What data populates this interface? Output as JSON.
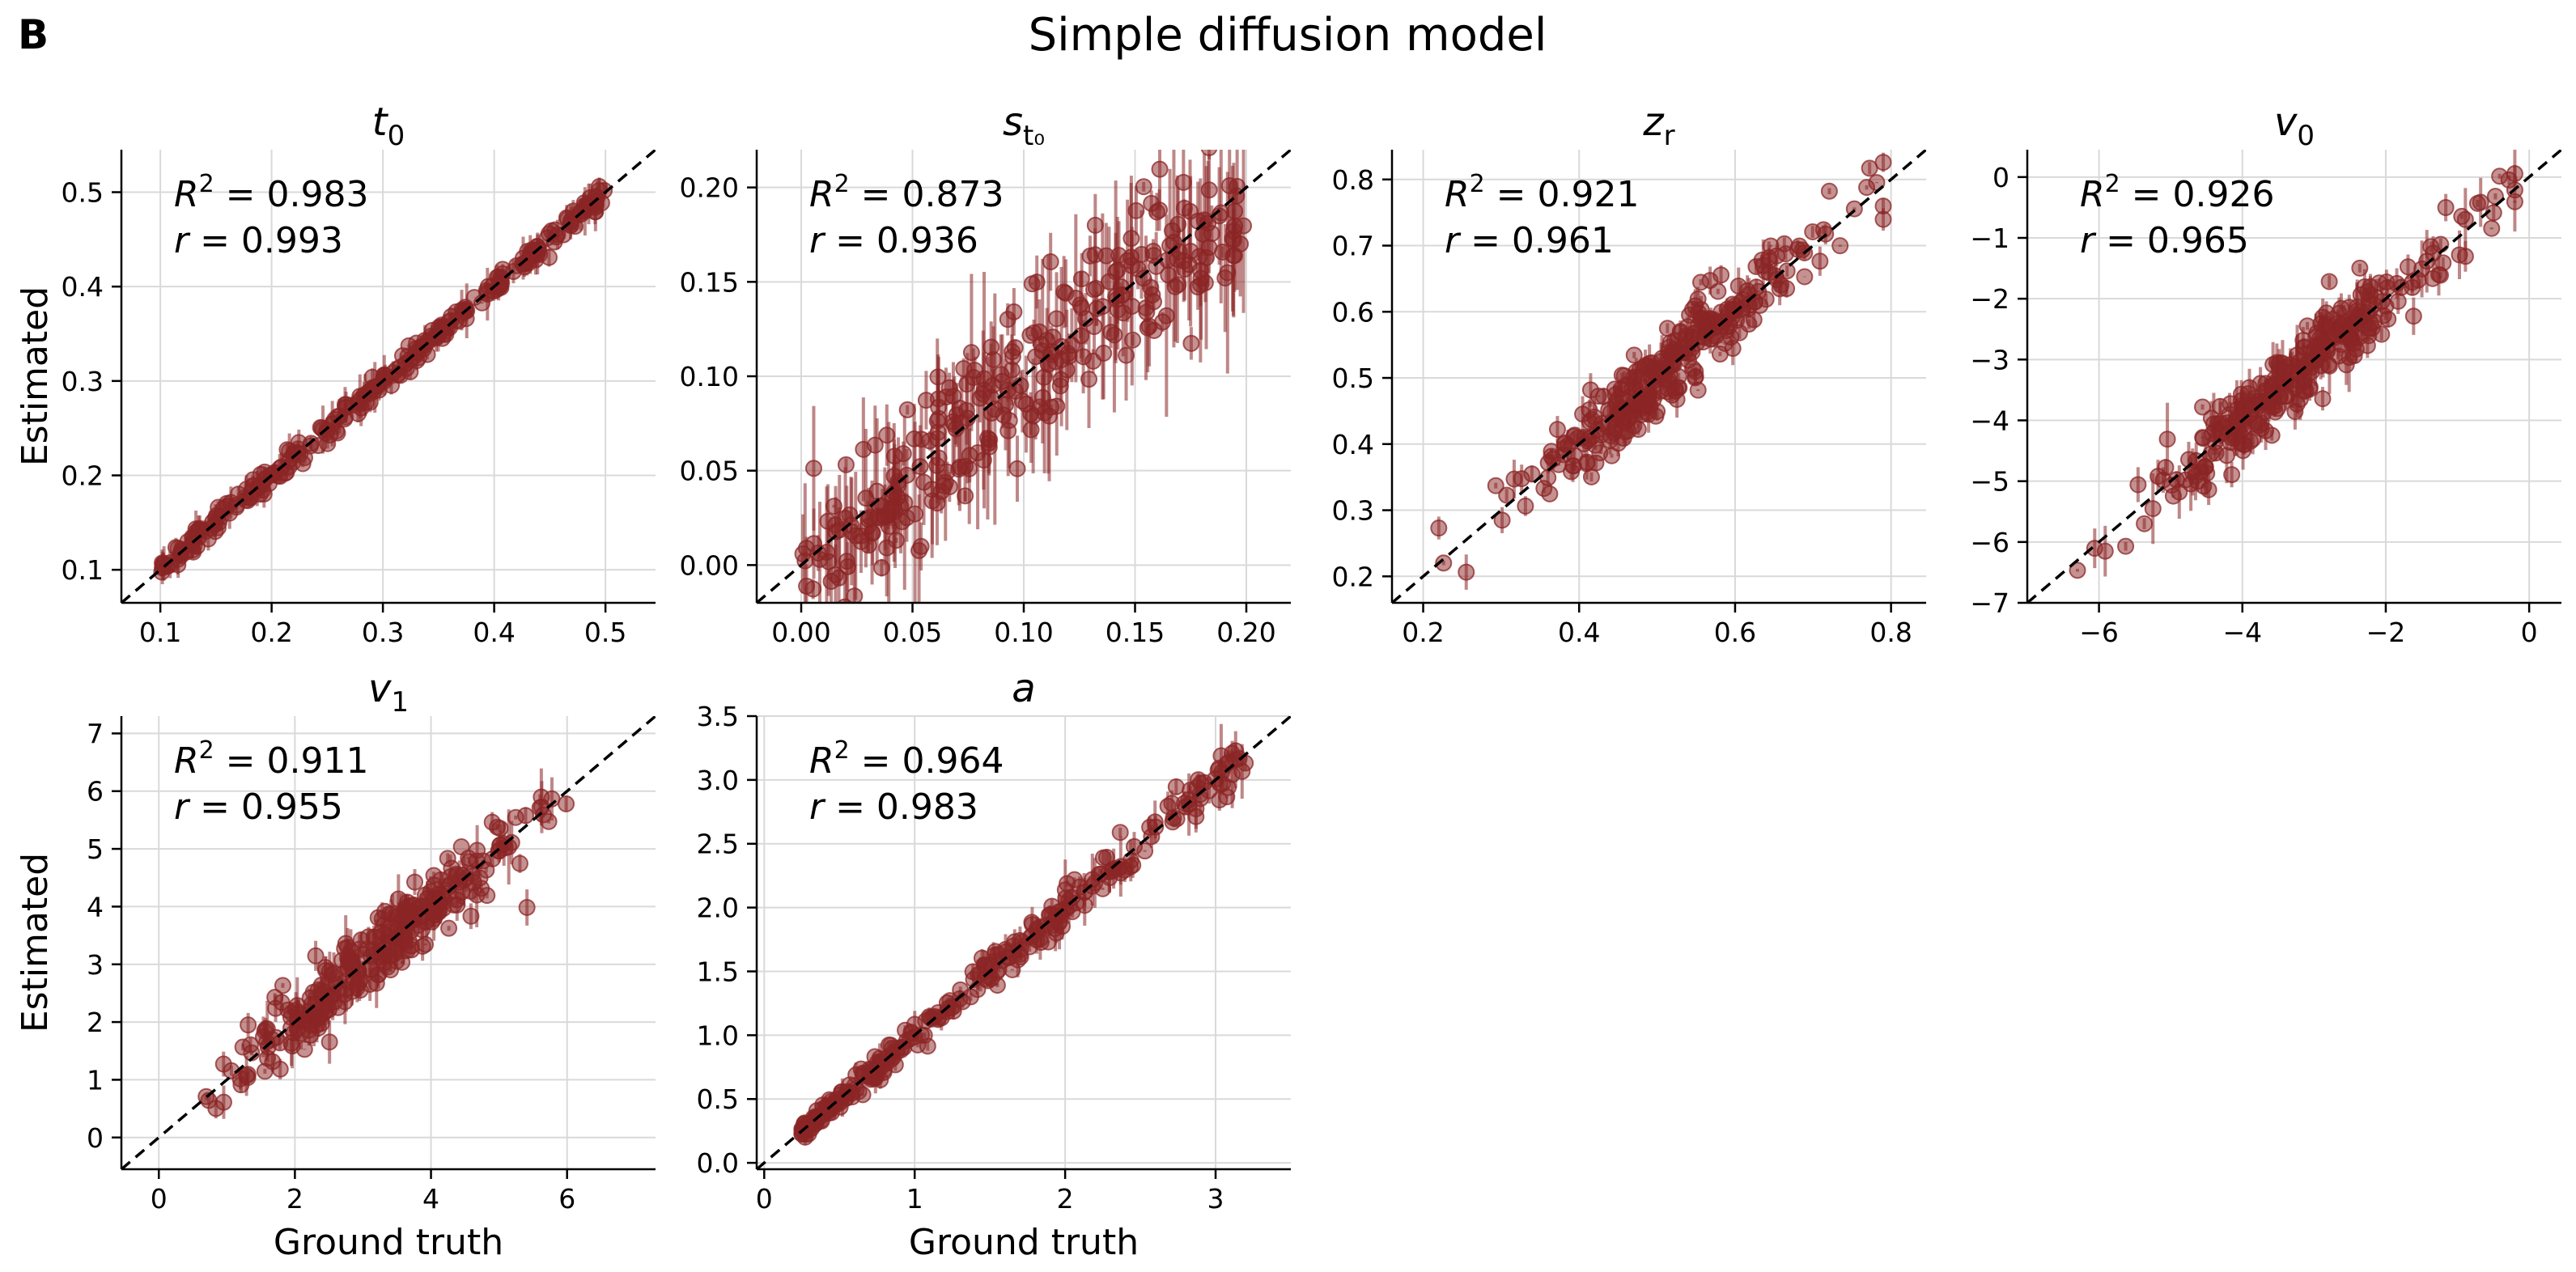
{
  "figure": {
    "panel_letter": "B",
    "title": "Simple diffusion model"
  },
  "colors": {
    "points": "#8b2525",
    "identity_line": "#000000",
    "grid": "#d9d9d9",
    "axes": "#000000"
  },
  "chart_data": [
    {
      "type": "scatter",
      "title": "t",
      "title_sub": "0",
      "xlabel": "",
      "ylabel": "Estimated",
      "xlim": [
        0.065,
        0.545
      ],
      "ylim": [
        0.065,
        0.545
      ],
      "xticks": [
        0.1,
        0.2,
        0.3,
        0.4,
        0.5
      ],
      "yticks": [
        0.1,
        0.2,
        0.3,
        0.4,
        0.5
      ],
      "r2": "0.983",
      "r": "0.993",
      "grid": true,
      "identity_line": true,
      "n_points": 300,
      "noise_sd": 0.006,
      "error_bar_sd": 0.01,
      "sampling": "uniform",
      "x_range": [
        0.1,
        0.5
      ]
    },
    {
      "type": "scatter",
      "title": "s",
      "title_sub": "t₀",
      "xlabel": "",
      "ylabel": "",
      "xlim": [
        -0.02,
        0.22
      ],
      "ylim": [
        -0.02,
        0.22
      ],
      "xticks": [
        0.0,
        0.05,
        0.1,
        0.15,
        0.2
      ],
      "yticks": [
        0.0,
        0.05,
        0.1,
        0.15,
        0.2
      ],
      "r2": "0.873",
      "r": "0.936",
      "grid": true,
      "identity_line": true,
      "n_points": 300,
      "noise_sd": 0.02,
      "error_bar_sd": 0.025,
      "sampling": "uniform",
      "x_range": [
        0.0,
        0.2
      ],
      "shrink_top": true
    },
    {
      "type": "scatter",
      "title": "z",
      "title_sub": "r",
      "xlabel": "",
      "ylabel": "",
      "xlim": [
        0.16,
        0.845
      ],
      "ylim": [
        0.16,
        0.845
      ],
      "xticks": [
        0.2,
        0.4,
        0.6,
        0.8
      ],
      "yticks": [
        0.2,
        0.3,
        0.4,
        0.5,
        0.6,
        0.7,
        0.8
      ],
      "r2": "0.921",
      "r": "0.961",
      "grid": true,
      "identity_line": true,
      "n_points": 300,
      "noise_sd": 0.03,
      "error_bar_sd": 0.015,
      "sampling": "normal",
      "x_center": 0.51,
      "x_spread": 0.1,
      "x_range": [
        0.22,
        0.79
      ]
    },
    {
      "type": "scatter",
      "title": "v",
      "title_sub": "0",
      "xlabel": "",
      "ylabel": "",
      "xlim": [
        -7.0,
        0.45
      ],
      "ylim": [
        -7.0,
        0.45
      ],
      "xticks": [
        -6,
        -4,
        -2,
        0
      ],
      "yticks": [
        -7,
        -6,
        -5,
        -4,
        -3,
        -2,
        -1,
        0
      ],
      "r2": "0.926",
      "r": "0.965",
      "grid": true,
      "identity_line": true,
      "n_points": 300,
      "noise_sd": 0.3,
      "error_bar_sd": 0.25,
      "sampling": "normal",
      "x_center": -3.2,
      "x_spread": 1.1,
      "x_range": [
        -6.3,
        -0.2
      ]
    },
    {
      "type": "scatter",
      "title": "v",
      "title_sub": "1",
      "xlabel": "Ground truth",
      "ylabel": "Estimated",
      "xlim": [
        -0.55,
        7.3
      ],
      "ylim": [
        -0.55,
        7.3
      ],
      "xticks": [
        0,
        2,
        4,
        6
      ],
      "yticks": [
        0,
        1,
        2,
        3,
        4,
        5,
        6,
        7
      ],
      "r2": "0.911",
      "r": "0.955",
      "grid": true,
      "identity_line": true,
      "n_points": 300,
      "noise_sd": 0.32,
      "error_bar_sd": 0.25,
      "sampling": "normal",
      "x_center": 3.3,
      "x_spread": 1.1,
      "x_range": [
        0.1,
        6.6
      ]
    },
    {
      "type": "scatter",
      "title": "a",
      "title_sub": "",
      "xlabel": "Ground truth",
      "ylabel": "",
      "xlim": [
        -0.05,
        3.5
      ],
      "ylim": [
        -0.05,
        3.5
      ],
      "xticks": [
        0,
        1,
        2,
        3
      ],
      "yticks": [
        0.0,
        0.5,
        1.0,
        1.5,
        2.0,
        2.5,
        3.0,
        3.5
      ],
      "r2": "0.964",
      "r": "0.983",
      "grid": true,
      "identity_line": true,
      "n_points": 300,
      "noise_sd": 0.05,
      "error_bar_sd": 0.06,
      "sampling": "skewed",
      "x_range": [
        0.25,
        3.2
      ],
      "heteroscedastic": true
    }
  ]
}
